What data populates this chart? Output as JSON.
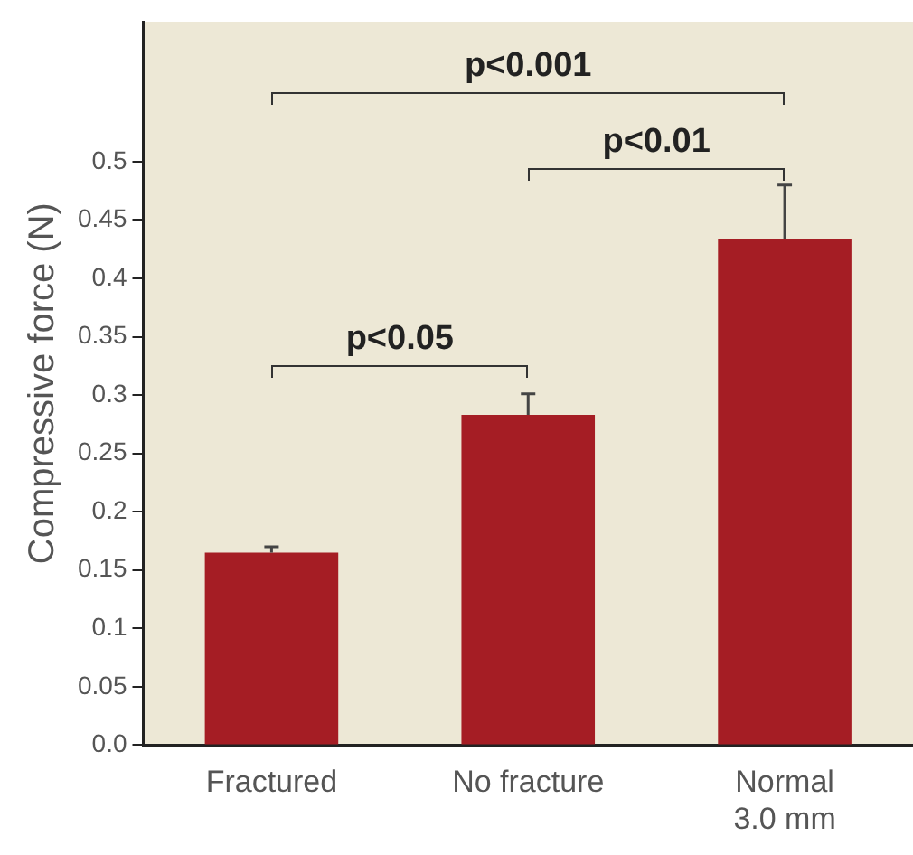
{
  "chart_data": {
    "type": "bar",
    "ylabel": "Compressive force (N)",
    "categories": [
      "Fractured",
      "No fracture",
      "Normal\n3.0 mm"
    ],
    "values": [
      0.165,
      0.283,
      0.434
    ],
    "errors": [
      [
        0.165,
        0.17
      ],
      [
        0.283,
        0.301
      ],
      [
        0.434,
        0.48
      ]
    ],
    "color": "#a51d24",
    "ylim": [
      0,
      0.62
    ],
    "yticks": [
      {
        "value": 0,
        "label": "0.0"
      },
      0.05,
      0.1,
      0.15,
      0.2,
      0.25,
      0.3,
      0.35,
      0.4,
      0.45,
      0.5
    ],
    "grid": false,
    "legend": false,
    "annotations": [
      "p<0.001",
      "p<0.01",
      "p<0.05"
    ]
  }
}
